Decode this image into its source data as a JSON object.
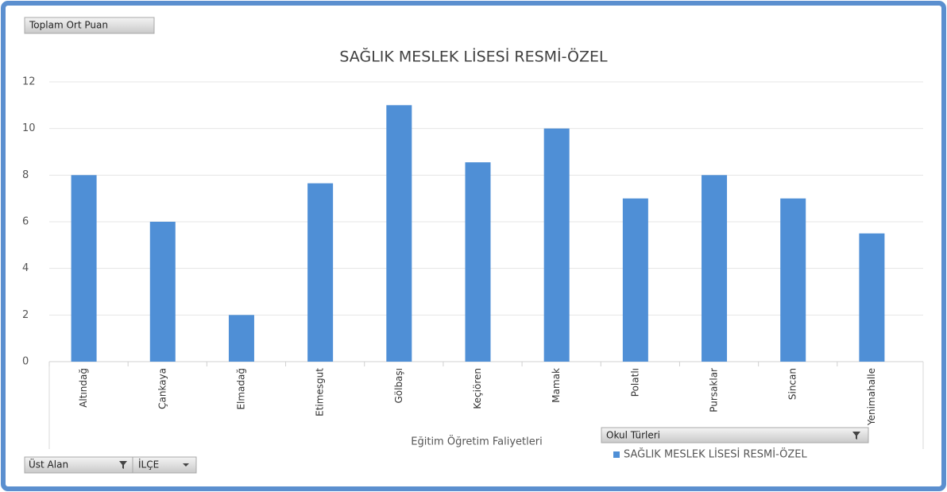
{
  "chart_data": {
    "type": "bar",
    "value_field": "Toplam Ort Puan",
    "title": "SAĞLIK MESLEK  LİSESİ RESMİ-ÖZEL",
    "x_label": "Eğitim Öğretim Faliyetleri",
    "legend_field": "Okul Türleri",
    "filter_fields": [
      "Üst Alan",
      "İLÇE"
    ],
    "categories": [
      "Altındağ",
      "Çankaya",
      "Elmadağ",
      "Etimesgut",
      "Gölbaşı",
      "Keçiören",
      "Mamak",
      "Polatlı",
      "Pursaklar",
      "Sincan",
      "Yenimahalle"
    ],
    "series": [
      {
        "name": "SAĞLIK MESLEK  LİSESİ RESMİ-ÖZEL",
        "color": "#4f8fd6",
        "values": [
          8,
          6,
          2,
          7.65,
          11,
          8.55,
          10,
          7,
          8,
          7,
          5.5
        ]
      }
    ],
    "ylim": [
      0,
      12
    ],
    "yticks": [
      0,
      2,
      4,
      6,
      8,
      10,
      12
    ],
    "grid": true,
    "legend": "bottom"
  }
}
